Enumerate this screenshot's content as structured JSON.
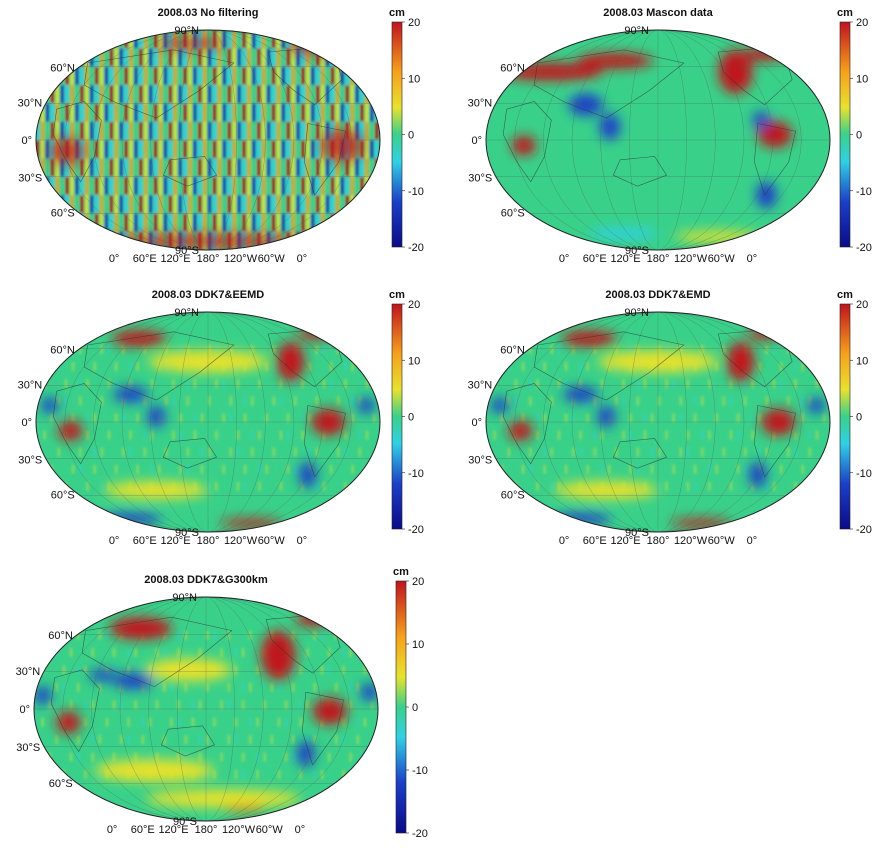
{
  "colorbar": {
    "unit": "cm",
    "ticks": [
      "20",
      "10",
      "0",
      "-10",
      "-20"
    ],
    "range": [
      -20,
      20
    ]
  },
  "panels": [
    {
      "title": "2008.03 No filtering",
      "style": "stripes",
      "pattern": "strong"
    },
    {
      "title": "2008.03 Mascon data",
      "style": "smooth",
      "pattern": "mascon"
    },
    {
      "title": "2008.03 DDK7&EEMD",
      "style": "mild",
      "pattern": "eemd"
    },
    {
      "title": "2008.03 DDK7&EMD",
      "style": "mild",
      "pattern": "eemd"
    },
    {
      "title": "2008.03 DDK7&G300km",
      "style": "mild",
      "pattern": "gauss"
    }
  ],
  "lat_labels": [
    "90°N",
    "60°N",
    "30°N",
    "0°",
    "30°S",
    "60°S",
    "90°S"
  ],
  "lon_labels": [
    "0°",
    "60°E",
    "120°E",
    "180°",
    "120°W",
    "60°W",
    "0°"
  ],
  "colors": {
    "ocean": "#39d18a",
    "red": "#c1121f",
    "orange": "#f7a01a",
    "yellow": "#e8e22c",
    "cyan": "#2fd1e6",
    "blue": "#1b3fc9",
    "darkblue": "#0a0a8a"
  }
}
